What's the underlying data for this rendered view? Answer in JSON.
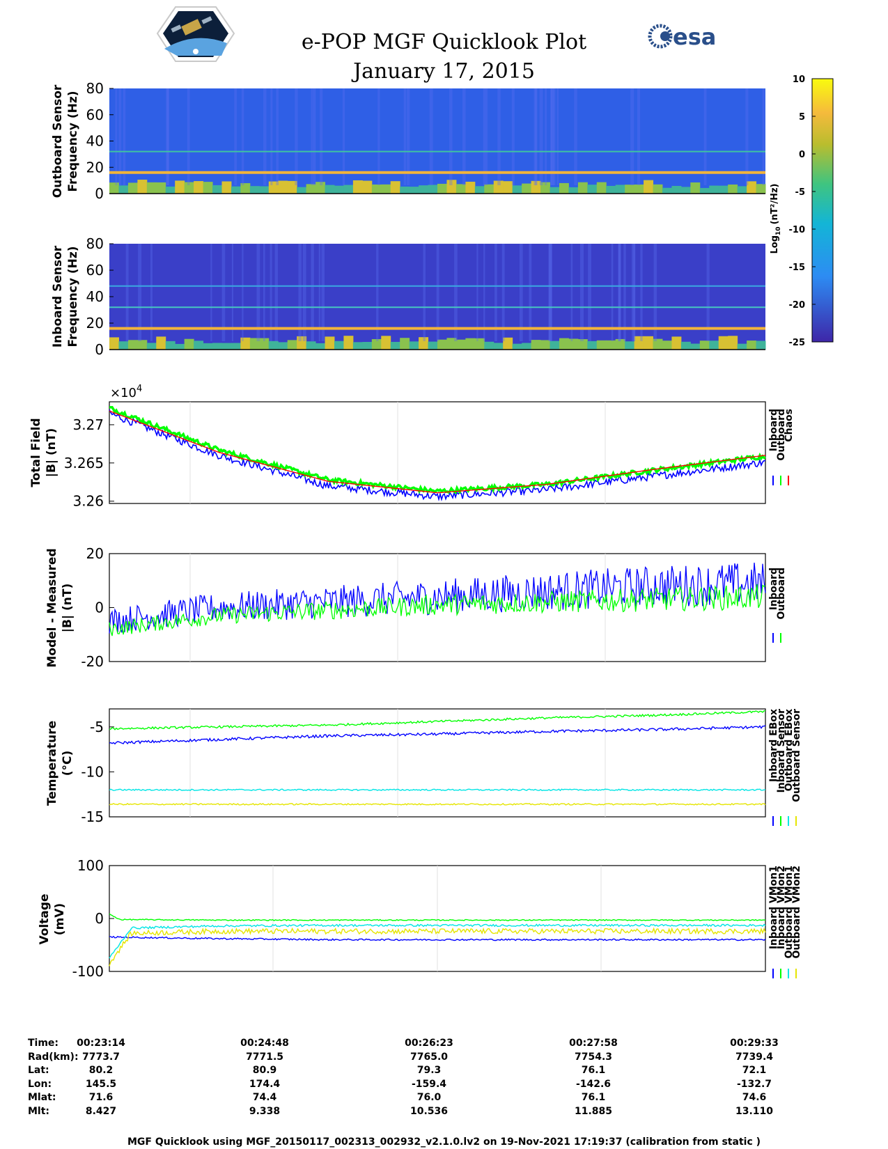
{
  "header": {
    "title": "e-POP MGF Quicklook Plot",
    "date": "January 17, 2015",
    "left_logo_icon": "cassiope-mission-logo-icon",
    "esa_logo_icon": "esa-logo-icon",
    "esa_text": "esa"
  },
  "chart_data": [
    {
      "id": "outboard-spectrogram",
      "type": "heatmap",
      "ylabel_line1": "Outboard Sensor",
      "ylabel_line2": "Frequency (Hz)",
      "ylim": [
        0,
        80
      ],
      "yticks": [
        "0",
        "20",
        "40",
        "60",
        "80"
      ],
      "bands_hz": [
        16,
        32
      ],
      "colorbar": {
        "label": "Log10 (nT^2/Hz)",
        "label_main": "Log",
        "label_sub": "10",
        "label_unit": "(nT²/Hz)",
        "range": [
          -25,
          10
        ],
        "ticks": [
          "10",
          "5",
          "0",
          "-5",
          "-10",
          "-15",
          "-20",
          "-25"
        ]
      }
    },
    {
      "id": "inboard-spectrogram",
      "type": "heatmap",
      "ylabel_line1": "Inboard Sensor",
      "ylabel_line2": "Frequency (Hz)",
      "ylim": [
        0,
        80
      ],
      "yticks": [
        "0",
        "20",
        "40",
        "60",
        "80"
      ],
      "bands_hz": [
        16,
        32,
        48
      ]
    },
    {
      "id": "total-field",
      "type": "line",
      "ylabel_line1": "Total Field",
      "ylabel_line2": "|B| (nT)",
      "ylim": [
        32597,
        32730
      ],
      "yticks": [
        32600,
        32650,
        32700
      ],
      "ytick_labels": [
        "3.26",
        "3.265",
        "3.27"
      ],
      "exponent_label": "×10",
      "exponent_power": "4",
      "series": [
        {
          "name": "Inboard",
          "color": "#0000ff",
          "x": [
            0,
            1,
            2,
            3,
            4,
            5,
            6
          ],
          "values": [
            32715,
            32660,
            32620,
            32606,
            32615,
            32633,
            32651
          ],
          "noise": 5
        },
        {
          "name": "Outboard",
          "color": "#00ff00",
          "x": [
            0,
            1,
            2,
            3,
            4,
            5,
            6
          ],
          "values": [
            32722,
            32667,
            32628,
            32613,
            32622,
            32641,
            32659
          ],
          "noise": 3
        },
        {
          "name": "Chaos",
          "color": "#ff0000",
          "x": [
            0,
            1,
            2,
            3,
            4,
            5,
            6
          ],
          "values": [
            32718,
            32664,
            32626,
            32611,
            32622,
            32642,
            32660
          ],
          "noise": 0
        }
      ]
    },
    {
      "id": "model-minus-measured",
      "type": "line",
      "ylabel_line1": "Model - Measured",
      "ylabel_line2": "|B| (nT)",
      "ylim": [
        -20,
        20
      ],
      "yticks": [
        "-20",
        "0",
        "20"
      ],
      "series": [
        {
          "name": "Inboard",
          "color": "#0000ff",
          "x": [
            0,
            1,
            2,
            3,
            4,
            5,
            6
          ],
          "values": [
            -5,
            0,
            2,
            4,
            6,
            8,
            9
          ],
          "noise": 7
        },
        {
          "name": "Outboard",
          "color": "#00ff00",
          "x": [
            0,
            1,
            2,
            3,
            4,
            5,
            6
          ],
          "values": [
            -8,
            -3,
            -1,
            1,
            2,
            3,
            4
          ],
          "noise": 4
        }
      ]
    },
    {
      "id": "temperature",
      "type": "line",
      "ylabel_line1": "Temperature",
      "ylabel_line2": "(°C)",
      "ylim": [
        -15,
        -3
      ],
      "yticks": [
        "-15",
        "-10",
        "-5"
      ],
      "series": [
        {
          "name": "Inboard EBox",
          "color": "#0000ff",
          "x": [
            0,
            1,
            2,
            3,
            4,
            5,
            6
          ],
          "values": [
            -6.8,
            -6.4,
            -6.0,
            -5.8,
            -5.5,
            -5.3,
            -5.0
          ],
          "noise": 0.15
        },
        {
          "name": "Inboard Sensor",
          "color": "#00ff00",
          "x": [
            0,
            1,
            2,
            3,
            4,
            5,
            6
          ],
          "values": [
            -5.2,
            -5.0,
            -4.8,
            -4.4,
            -4.0,
            -3.7,
            -3.3
          ],
          "noise": 0.12
        },
        {
          "name": "Outboard EBox",
          "color": "#00e5e5",
          "x": [
            0,
            1,
            2,
            3,
            4,
            5,
            6
          ],
          "values": [
            -12.0,
            -12.0,
            -12.0,
            -12.0,
            -12.0,
            -12.0,
            -12.0
          ],
          "noise": 0.08
        },
        {
          "name": "Outboard Sensor",
          "color": "#e5e500",
          "x": [
            0,
            1,
            2,
            3,
            4,
            5,
            6
          ],
          "values": [
            -13.6,
            -13.6,
            -13.6,
            -13.6,
            -13.6,
            -13.6,
            -13.6
          ],
          "noise": 0.08
        }
      ]
    },
    {
      "id": "voltage",
      "type": "line",
      "ylabel_line1": "Voltage",
      "ylabel_line2": "(mV)",
      "ylim": [
        -100,
        100
      ],
      "yticks": [
        "-100",
        "0",
        "100"
      ],
      "series": [
        {
          "name": "Inboard VMon1",
          "color": "#0000ff",
          "x": [
            0,
            1,
            2,
            3,
            4,
            5,
            6
          ],
          "values": [
            -35,
            -38,
            -40,
            -40,
            -40,
            -40,
            -40
          ],
          "noise": 1.5
        },
        {
          "name": "Inboard VMon2",
          "color": "#00ff00",
          "x": [
            0,
            0.1,
            1,
            2,
            3,
            4,
            5,
            6
          ],
          "values": [
            8,
            -2,
            -3,
            -3,
            -3,
            -3,
            -3,
            -3
          ],
          "noise": 1
        },
        {
          "name": "Outboard VMon1",
          "color": "#00e5e5",
          "x": [
            0,
            0.2,
            1,
            2,
            3,
            4,
            5,
            6
          ],
          "values": [
            -75,
            -18,
            -14,
            -13,
            -13,
            -13,
            -13,
            -13
          ],
          "noise": 2
        },
        {
          "name": "Outboard VMon2",
          "color": "#e5e500",
          "x": [
            0,
            0.2,
            1,
            2,
            3,
            4,
            5,
            6
          ],
          "values": [
            -85,
            -28,
            -24,
            -24,
            -24,
            -24,
            -24,
            -24
          ],
          "noise": 5
        }
      ]
    }
  ],
  "ephemeris": {
    "labels": [
      "Time:",
      "Rad(km):",
      "Lat:",
      "Lon:",
      "Mlat:",
      "Mlt:"
    ],
    "columns": [
      [
        "00:23:14",
        "7773.7",
        "80.2",
        "145.5",
        "71.6",
        "8.427"
      ],
      [
        "00:24:48",
        "7771.5",
        "80.9",
        "174.4",
        "74.4",
        "9.338"
      ],
      [
        "00:26:23",
        "7765.0",
        "79.3",
        "-159.4",
        "76.0",
        "10.536"
      ],
      [
        "00:27:58",
        "7754.3",
        "76.1",
        "-142.6",
        "76.1",
        "11.885"
      ],
      [
        "00:29:33",
        "7739.4",
        "72.1",
        "-132.7",
        "74.6",
        "13.110"
      ]
    ]
  },
  "footer": "MGF Quicklook using MGF_20150117_002313_002932_v2.1.0.lv2 on 19-Nov-2021 17:19:37 (calibration from static )"
}
